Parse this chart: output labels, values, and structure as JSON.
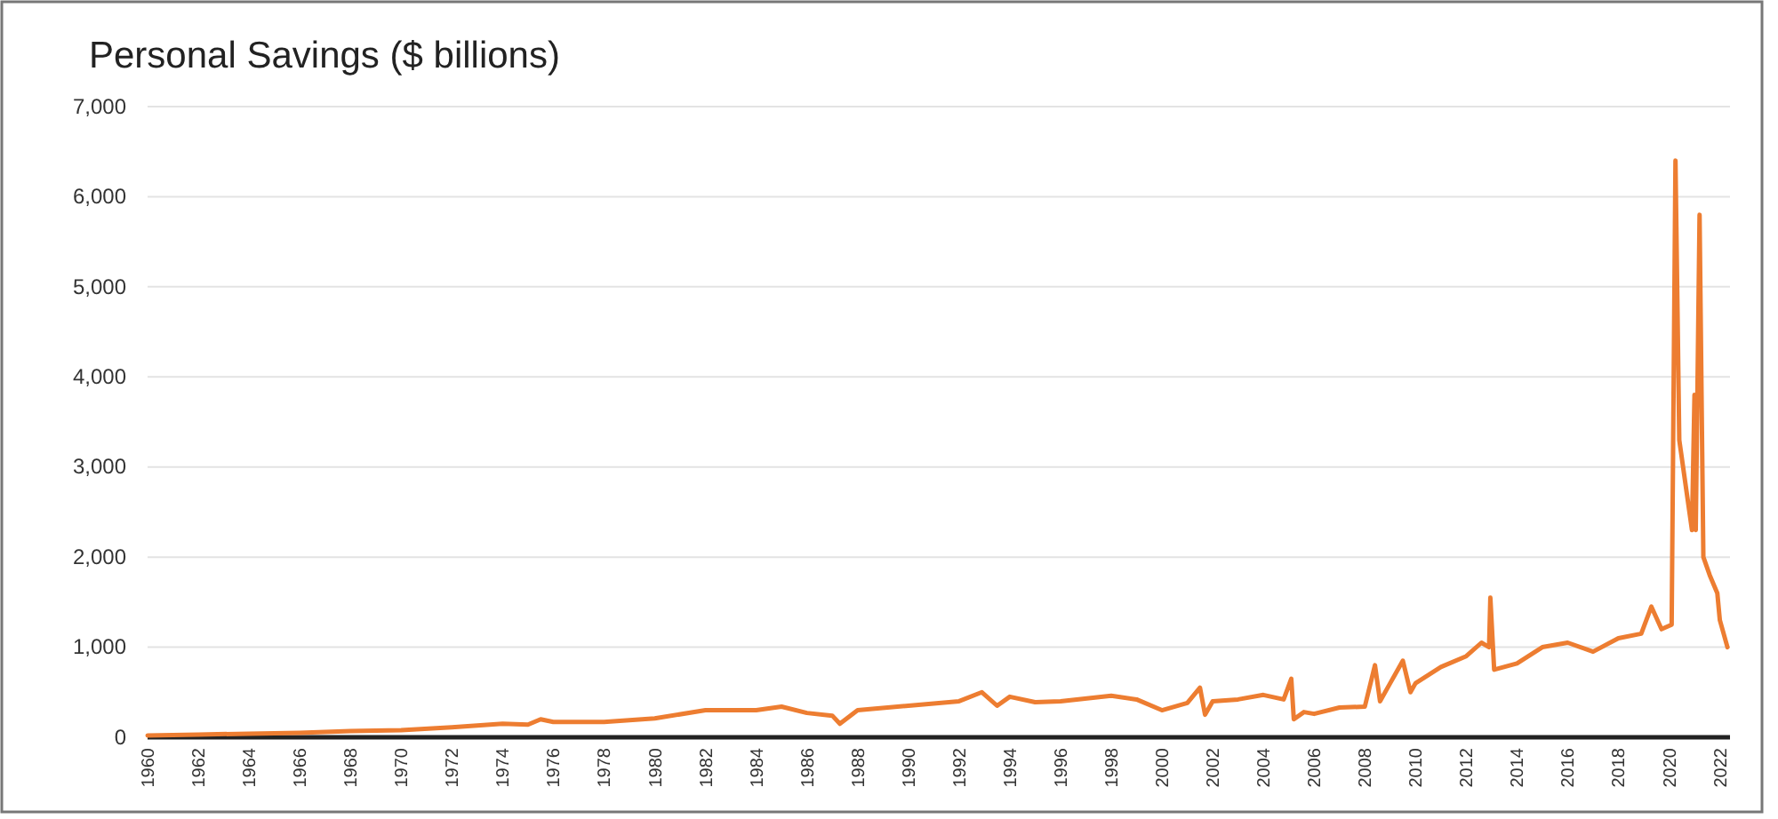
{
  "chart_data": {
    "type": "line",
    "title": "Personal Savings ($ billions)",
    "x": [
      1960,
      1962,
      1964,
      1966,
      1968,
      1970,
      1972,
      1974,
      1975,
      1975.5,
      1976,
      1978,
      1980,
      1982,
      1984,
      1985,
      1986,
      1987,
      1987.3,
      1988,
      1990,
      1992,
      1992.9,
      1993.5,
      1994,
      1995,
      1996,
      1998,
      1999,
      2000,
      2001,
      2001.5,
      2001.7,
      2002,
      2003,
      2004,
      2004.8,
      2005.1,
      2005.2,
      2005.6,
      2006,
      2007,
      2008,
      2008.4,
      2008.6,
      2009,
      2009.5,
      2009.8,
      2010,
      2011,
      2012,
      2012.6,
      2012.9,
      2012.95,
      2013.1,
      2014,
      2015,
      2016,
      2017,
      2018,
      2018.9,
      2019.3,
      2019.7,
      2020.1,
      2020.25,
      2020.4,
      2020.7,
      2020.9,
      2021.0,
      2021.05,
      2021.2,
      2021.35,
      2021.6,
      2021.9,
      2022,
      2022.3
    ],
    "series": [
      {
        "color": "#ed7d31",
        "values": [
          20,
          30,
          40,
          50,
          70,
          80,
          110,
          150,
          140,
          200,
          170,
          170,
          210,
          300,
          300,
          340,
          270,
          240,
          150,
          300,
          350,
          400,
          500,
          350,
          450,
          390,
          400,
          460,
          420,
          300,
          380,
          550,
          250,
          400,
          420,
          470,
          420,
          650,
          200,
          280,
          260,
          330,
          340,
          800,
          400,
          600,
          850,
          500,
          600,
          780,
          900,
          1050,
          1000,
          1550,
          750,
          820,
          1000,
          1050,
          950,
          1100,
          1150,
          1450,
          1200,
          1250,
          6400,
          3300,
          2700,
          2300,
          3800,
          2300,
          5800,
          2000,
          1800,
          1600,
          1300,
          1000
        ]
      }
    ],
    "xlim": [
      1960,
      2022.4
    ],
    "xticks": [
      1960,
      1962,
      1964,
      1966,
      1968,
      1970,
      1972,
      1974,
      1976,
      1978,
      1980,
      1982,
      1984,
      1986,
      1988,
      1990,
      1992,
      1994,
      1996,
      1998,
      2000,
      2002,
      2004,
      2006,
      2008,
      2010,
      2012,
      2014,
      2016,
      2018,
      2020,
      2022
    ],
    "ylim": [
      0,
      7000
    ],
    "yticks": [
      {
        "value": 0,
        "label": "0"
      },
      {
        "value": 1000,
        "label": "1,000"
      },
      {
        "value": 2000,
        "label": "2,000"
      },
      {
        "value": 3000,
        "label": "3,000"
      },
      {
        "value": 4000,
        "label": "4,000"
      },
      {
        "value": 5000,
        "label": "5,000"
      },
      {
        "value": 6000,
        "label": "6,000"
      },
      {
        "value": 7000,
        "label": "7,000"
      }
    ],
    "grid": "y",
    "marker": "none",
    "line_style": "solid"
  }
}
